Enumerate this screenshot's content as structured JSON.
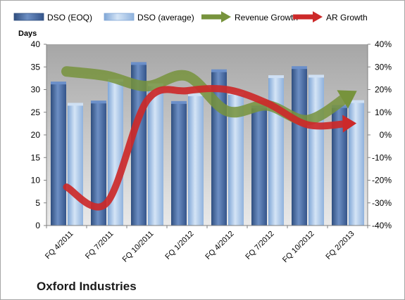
{
  "company": "Oxford Industries",
  "chart_data": {
    "type": "bar",
    "categories": [
      "FQ 4/2011",
      "FQ 7/2011",
      "FQ 10/2011",
      "FQ 1/2012",
      "FQ 4/2012",
      "FQ 7/2012",
      "FQ 10/2012",
      "FQ 2/2013"
    ],
    "ylabel": "Days",
    "ylim": [
      0,
      40
    ],
    "y_ticks": [
      "0",
      "5",
      "10",
      "15",
      "20",
      "25",
      "30",
      "35",
      "40"
    ],
    "y2lim": [
      -40,
      40
    ],
    "y2_ticks": [
      "-40%",
      "-30%",
      "-20%",
      "-10%",
      "0%",
      "10%",
      "20%",
      "30%",
      "40%"
    ],
    "grid": false,
    "legend_position": "top",
    "series": [
      {
        "name": "DSO (EOQ)",
        "kind": "bar",
        "axis": "left",
        "color": "#4a6fa5",
        "values": [
          31.3,
          27.1,
          35.6,
          27.0,
          34.0,
          26.0,
          34.7,
          26.1
        ]
      },
      {
        "name": "DSO (average)",
        "kind": "bar",
        "axis": "left",
        "color": "#a9c6e8",
        "values": [
          26.6,
          31.9,
          30.9,
          28.7,
          29.0,
          32.7,
          32.8,
          27.2
        ]
      },
      {
        "name": "Revenue Growth",
        "kind": "arrow-line",
        "axis": "right",
        "unit": "%",
        "color": "#77933c",
        "values": [
          28,
          26,
          21.5,
          26,
          10.5,
          13,
          6.5,
          17
        ]
      },
      {
        "name": "AR Growth",
        "kind": "arrow-line",
        "axis": "right",
        "unit": "%",
        "color": "#cc2929",
        "values": [
          -23,
          -30,
          15,
          19.5,
          20,
          14,
          4.5,
          5
        ]
      }
    ]
  }
}
